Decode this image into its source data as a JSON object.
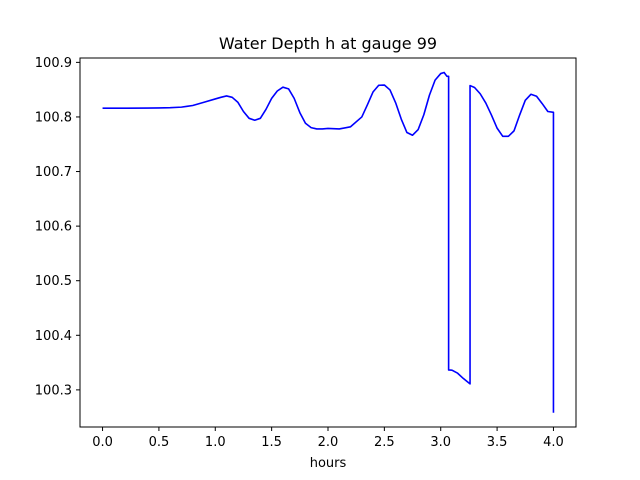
{
  "chart_data": {
    "type": "line",
    "title": "Water Depth h at gauge 99",
    "xlabel": "hours",
    "ylabel": "",
    "xlim": [
      -0.2,
      4.2
    ],
    "ylim": [
      100.232,
      100.908
    ],
    "xticks": [
      0.0,
      0.5,
      1.0,
      1.5,
      2.0,
      2.5,
      3.0,
      3.5,
      4.0
    ],
    "xtick_labels": [
      "0.0",
      "0.5",
      "1.0",
      "1.5",
      "2.0",
      "2.5",
      "3.0",
      "3.5",
      "4.0"
    ],
    "yticks": [
      100.3,
      100.4,
      100.5,
      100.6,
      100.7,
      100.8,
      100.9
    ],
    "ytick_labels": [
      "100.3",
      "100.4",
      "100.5",
      "100.6",
      "100.7",
      "100.8",
      "100.9"
    ],
    "grid": false,
    "legend": "none",
    "series": [
      {
        "color": "#0000ff",
        "x": [
          0.0,
          0.2,
          0.4,
          0.5,
          0.6,
          0.7,
          0.75,
          0.8,
          0.9,
          1.0,
          1.05,
          1.1,
          1.15,
          1.2,
          1.25,
          1.3,
          1.35,
          1.4,
          1.45,
          1.5,
          1.55,
          1.6,
          1.65,
          1.7,
          1.75,
          1.8,
          1.85,
          1.9,
          1.95,
          2.0,
          2.1,
          2.2,
          2.3,
          2.35,
          2.4,
          2.45,
          2.5,
          2.55,
          2.6,
          2.65,
          2.7,
          2.75,
          2.8,
          2.85,
          2.9,
          2.95,
          3.0,
          3.03,
          3.055,
          3.07,
          3.07,
          3.1,
          3.15,
          3.2,
          3.26,
          3.26,
          3.3,
          3.35,
          3.4,
          3.45,
          3.5,
          3.55,
          3.6,
          3.65,
          3.7,
          3.75,
          3.8,
          3.85,
          3.9,
          3.95,
          4.0,
          4.0
        ],
        "y": [
          100.816,
          100.816,
          100.8162,
          100.8165,
          100.817,
          100.818,
          100.8195,
          100.821,
          100.827,
          100.833,
          100.836,
          100.8385,
          100.836,
          100.827,
          100.81,
          100.7975,
          100.794,
          100.7975,
          100.814,
          100.834,
          100.8475,
          100.8545,
          100.8515,
          100.834,
          100.808,
          100.7885,
          100.7805,
          100.778,
          100.778,
          100.779,
          100.778,
          100.782,
          100.8,
          100.8225,
          100.846,
          100.858,
          100.8585,
          100.8495,
          100.826,
          100.796,
          100.7715,
          100.7665,
          100.777,
          100.804,
          100.84,
          100.8675,
          100.8795,
          100.8815,
          100.8745,
          100.8745,
          100.3365,
          100.336,
          100.3305,
          100.321,
          100.311,
          100.8575,
          100.854,
          100.8425,
          100.8255,
          100.8035,
          100.7795,
          100.7645,
          100.7645,
          100.7745,
          100.8035,
          100.8305,
          100.8415,
          100.838,
          100.8245,
          100.81,
          100.8085,
          100.258
        ]
      }
    ]
  }
}
